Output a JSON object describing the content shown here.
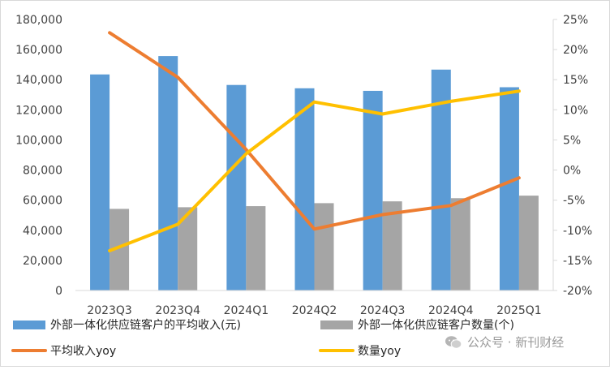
{
  "chart_data": {
    "type": "bar",
    "categories": [
      "2023Q3",
      "2023Q4",
      "2024Q1",
      "2024Q2",
      "2024Q3",
      "2024Q4",
      "2025Q1"
    ],
    "series": [
      {
        "name": "外部一体化供应链客户的平均收入(元)",
        "kind": "bar",
        "axis": "left",
        "color": "#5B9BD5",
        "values": [
          143500,
          155700,
          136500,
          134300,
          132600,
          146700,
          135000
        ]
      },
      {
        "name": "外部一体化供应链客户数量(个)",
        "kind": "bar",
        "axis": "left",
        "color": "#A5A5A5",
        "values": [
          54200,
          55300,
          56000,
          58000,
          59200,
          61300,
          63000
        ]
      },
      {
        "name": "平均收入yoy",
        "kind": "line",
        "axis": "right",
        "color": "#ED7D31",
        "values": [
          22.8,
          15.4,
          3.4,
          -9.8,
          -7.4,
          -5.9,
          -1.3
        ]
      },
      {
        "name": "数量yoy",
        "kind": "line",
        "axis": "right",
        "color": "#FFC000",
        "values": [
          -13.4,
          -9.0,
          2.7,
          11.3,
          9.3,
          11.4,
          13.1
        ]
      }
    ],
    "y_left": {
      "min": 0,
      "max": 180000,
      "ticks": [
        "0",
        "20,000",
        "40,000",
        "60,000",
        "80,000",
        "100,000",
        "120,000",
        "140,000",
        "160,000",
        "180,000"
      ]
    },
    "y_right": {
      "min": -20,
      "max": 25,
      "ticks": [
        "-20%",
        "-15%",
        "-10%",
        "-5%",
        "0%",
        "5%",
        "10%",
        "15%",
        "20%",
        "25%"
      ]
    },
    "grid": false,
    "legend_position": "bottom"
  },
  "watermark": {
    "text": "公众号 · 新刊财经",
    "icon": "wechat-icon"
  }
}
